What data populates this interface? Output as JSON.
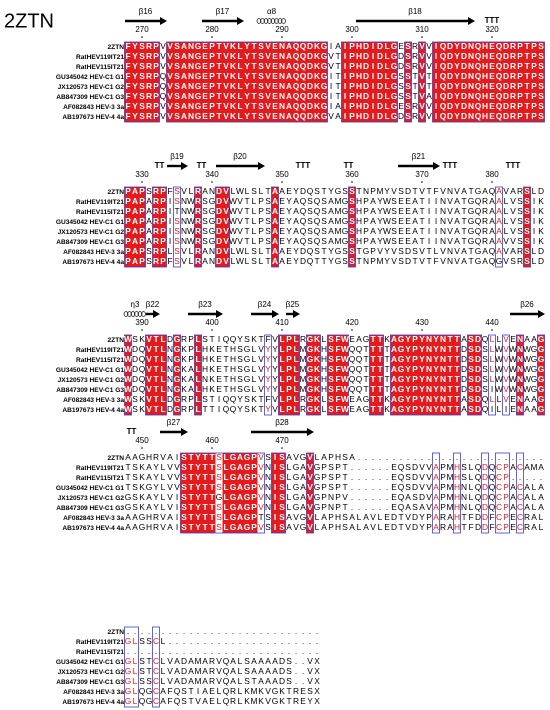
{
  "title": "2ZTN",
  "names": [
    "2ZTN",
    "RatHEV119IT21",
    "RatHEV115IT21",
    "GU345042 HEV-C1 G1",
    "JX120573 HEV-C1 G2",
    "AB847309 HEV-C1 G3",
    "AF082843 HEV-3 3a",
    "AB197673 HEV-4 4a"
  ],
  "blocks": [
    {
      "numbers": [
        270,
        280,
        290,
        300,
        310,
        320
      ],
      "structure": [
        {
          "label": "β16",
          "type": "strand",
          "from": 268,
          "to": 273
        },
        {
          "label": "β17",
          "type": "strand",
          "from": 279,
          "to": 284
        },
        {
          "label": "α8",
          "type": "helix",
          "from": 287,
          "to": 290
        },
        {
          "label": "β18",
          "type": "strand",
          "from": 301,
          "to": 317
        },
        {
          "label": "TTT",
          "type": "turn",
          "from": 319,
          "to": 321
        }
      ],
      "sequences": [
        "FYSRPVVSANGEPTVKLYTSVENAQQDKGIAIPHDIDLGESRVVIQDYDNQHEQDRPTPS",
        "FYSRPVVSANGEPTVKLYTSVENAQQDKGVTIPHDIDLGDSRVVIQDYDNQHEQDRPTPS",
        "FYSRPVVSANGEPTVKLYTSVENAQQDKGVTIPHDIDLGDSRVVIQDYDNQHEQDRPTPS",
        "FYSRPQVSANGEPTVKLYTSVENAQQDKGITIPHDIDLGSSTVTIQDYDNQHEQDRPTPS",
        "FYSRPQVSANGEPTVKLYTSVENAQQDKGITIPHDIDLGSSTVTIQDYDNQHEQDRPTPS",
        "FYSRPQVSANGEPTVKLYTSVENAQQDKGITIPHDIDLGSSTVAIQDYDNQHEQDRPTPS",
        "FYSRPVVSANGEPTVKLYTSVENAQQDKGIAIPHDIDLGESRVVIQDYDNQHEQDRPTPS",
        "FYSRPVVSANGEPTVKLYTSVENAQQDKGVAIPHDIDLGDSRVVIQDYDNQHEQDRPTPS"
      ]
    },
    {
      "numbers": [
        330,
        340,
        350,
        360,
        370,
        380
      ],
      "structure": [
        {
          "label": "TT",
          "type": "turn",
          "from": 332,
          "to": 333
        },
        {
          "label": "β19",
          "type": "strand",
          "from": 334,
          "to": 336
        },
        {
          "label": "TT",
          "type": "turn",
          "from": 338,
          "to": 339
        },
        {
          "label": "β20",
          "type": "strand",
          "from": 341,
          "to": 347
        },
        {
          "label": "TTT",
          "type": "turn",
          "from": 352,
          "to": 354
        },
        {
          "label": "TT",
          "type": "turn",
          "from": 359,
          "to": 360
        },
        {
          "label": "β21",
          "type": "strand",
          "from": 367,
          "to": 372
        },
        {
          "label": "TTT",
          "type": "turn",
          "from": 373,
          "to": 375
        },
        {
          "label": "TTT",
          "type": "turn",
          "from": 382,
          "to": 384
        }
      ],
      "sequences": [
        "PAPSRPFSVLRANDVLWLSLTAAEYDQSTYGSSTNPMYVSDTVTFVNVATGAQAVARSLD",
        "PAPARPISNWRSGDVWVTLPSAEYAQSQSAMGSHPAYWSEEATIINVATGQRAALVSSIK",
        "PAPARPITNWRSGDVWVTLPSAEYAQSQSAMGSHPAYWSEEATIINVATGQRAALVSSIK",
        "PAPARPISNWRSGDVWVTLPSAEYAQSQSAMGSHPAYWSEEATIINVATGQRAALVSSIK",
        "PAPARPISNWRSGDVWVTLPSAEYAQSQSAMGSHPAYWSEEATIINVATGQRAALVSSIK",
        "PAPARPISNWRSGDVWVTLPSAEYAQSQSAMGSHPAYWSEEATIINVATGQRAAVVSSIK",
        "PAPSRPLSVLRANDVLWLSLTAAEYDQSTYGSSTGPVYVSDSVTLVNVATGAQAVARSLD",
        "PAPSRPFSVLRANDVLWLSLTAAEYDQTTYGSSTNPMYVSDTVTFVNVATGAQGVSRSLD"
      ]
    },
    {
      "numbers": [
        390,
        400,
        410,
        420,
        430,
        440
      ],
      "structure": [
        {
          "label": "η3",
          "type": "helix",
          "from": 388,
          "to": 390
        },
        {
          "label": "β22",
          "type": "strand",
          "from": 391,
          "to": 392
        },
        {
          "label": "β23",
          "type": "strand",
          "from": 397,
          "to": 401
        },
        {
          "label": "β24",
          "type": "strand",
          "from": 406,
          "to": 409
        },
        {
          "label": "β25",
          "type": "strand",
          "from": 411,
          "to": 412
        },
        {
          "label": "β26",
          "type": "strand",
          "from": 443,
          "to": 447
        }
      ],
      "sequences": [
        "WSKVTLDGRPLSTIQQYSKTFVLPLRGKLSFWEAGTTKAGYPYNYNTTASDQLLVENAAG",
        "WDQVTLNGKPLHKETHSGLVYYLPLMGKHSFWQQTTTTAGYPYNYNTTDSDSLWVWNWGG",
        "WDQVTLNGKPLHKETHSGLVYYLPLMGKHSFWQQTTTTAGYPYNYNTTDSDSLWVWNWGG",
        "WDQVTLNGKALHKETHSGLVYYLPLMGKHSFWQQTTTTAGYPYNYNTTDSDSLWVWNWGG",
        "WDQVTLNGKALNKETHSGLVYYLPLMGKHSFWQQTTTTAGYPYNYNTTDSDSLWVWNWGG",
        "WDQVTLNGKALHKETHSGLVYYLPLMGKHSFWQQTTTTAGYPYNYNTTDSDSIWVWNWGG",
        "WSKVTLDGRPLSTIQQYSKTFVLPLRGKLSFWEAGTTKAGYPYNYNTTASDQLLVENAAG",
        "WSKVTLDGRPLTTIQQYSKTYVLPLRGKLSFWEAGTTKAGYPYNYNTTASDQILIENAAG"
      ]
    },
    {
      "numbers": [
        450,
        460,
        470
      ],
      "structure": [
        {
          "label": "TT",
          "type": "turn",
          "from": 448,
          "to": 449
        },
        {
          "label": "β27",
          "type": "strand",
          "from": 453,
          "to": 456
        },
        {
          "label": "β28",
          "type": "strand",
          "from": 466,
          "to": 474
        }
      ],
      "sequences": [
        "AAGHRVAISTYTTSLGAGPVSISAVGVLAPHSA...........................",
        "TSKAYLVVSTYTTSLGAGPVNISLGAVGPSPT......EQSDVVAPMHSLQDQCPACAMA",
        "TSKAYLVVSTYTTSLGAGPVNISLGAVGPSPT......EQSDVVAPMHSLQDQCP.....",
        "TSKGYLVVSTYTTSLGAGPVNISLGAVGPSPT......EQSDVVAPMHNLQDQCPACALA",
        "GSKAYLVISTYTTGLGAGPVNISLGAVGPNPV......EQASDVAPMHNLQDQCPACALA",
        "GSKAYLVISTYTTSLGAGPVNISLGAVGPNPT......EQASAVAPMHNLQDQCPACALA",
        "AAGHRVAISTYTTSLGAGPTSISAVGVLAPHSALAVLEDTVDYPARAHTFDDFCPECRAL",
        "AAGHRVAISTYTTSLGAGPVSISAVGVLAPHSALAVLEDTVDYPARAHTFDDFCPECRAL"
      ]
    },
    {
      "sequences": [
        "............................",
        "GLSSCL......................",
        "............................",
        "GLSTCLVADAMARVQALSAAAADS..VX",
        "GLSTCLVADAMARVQALSAAAADS..VX",
        "GLSSCLVADAMARVQALSTAAADS..VX",
        "GLQGCAFQSTIAELQRLKMKVGKTRESX",
        "GLQGCAFQSTVAELQRLKMKVGKTREYX"
      ]
    }
  ]
}
